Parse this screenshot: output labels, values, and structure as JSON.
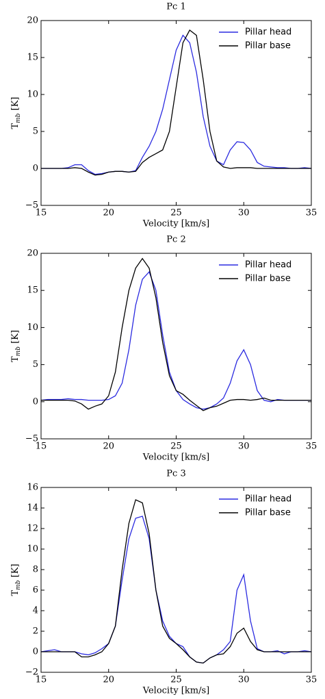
{
  "chart_data": [
    {
      "type": "line",
      "title": "Pc 1",
      "xlabel": "Velocity [km/s]",
      "ylabel": {
        "main": "T",
        "sub": "mb",
        "rest": " [K]"
      },
      "xlim": [
        15,
        35
      ],
      "xticks": [
        15,
        20,
        25,
        30,
        35
      ],
      "ylim": [
        -5,
        20
      ],
      "yticks": [
        {
          "value": -5,
          "label": "−5"
        },
        0,
        5,
        10,
        15,
        20
      ],
      "legend": "upper right",
      "x": [
        15,
        15.5,
        16,
        16.5,
        17,
        17.5,
        18,
        18.5,
        19,
        19.5,
        20,
        20.5,
        21,
        21.5,
        22,
        22.5,
        23,
        23.5,
        24,
        24.5,
        25,
        25.5,
        26,
        26.5,
        27,
        27.5,
        28,
        28.5,
        29,
        29.5,
        30,
        30.5,
        31,
        31.5,
        32,
        32.5,
        33,
        33.5,
        34,
        34.5,
        35
      ],
      "series": [
        {
          "name": "Pillar head",
          "color": "#2a2ae0",
          "values": [
            0,
            0,
            0,
            0,
            0.1,
            0.5,
            0.5,
            -0.3,
            -0.8,
            -0.7,
            -0.5,
            -0.4,
            -0.4,
            -0.5,
            -0.3,
            1.5,
            3,
            5,
            8,
            12,
            16,
            18,
            17,
            13,
            7,
            3,
            1,
            0.5,
            2.5,
            3.6,
            3.5,
            2.5,
            0.8,
            0.3,
            0.2,
            0.1,
            0.1,
            0,
            0,
            0.1,
            0
          ]
        },
        {
          "name": "Pillar base",
          "color": "#000000",
          "values": [
            0,
            0,
            0,
            0,
            0,
            0.1,
            0,
            -0.5,
            -0.9,
            -0.8,
            -0.5,
            -0.4,
            -0.4,
            -0.5,
            -0.4,
            0.8,
            1.5,
            2,
            2.5,
            5,
            11,
            17,
            18.7,
            18,
            12,
            5,
            1,
            0.2,
            0,
            0.1,
            0.1,
            0.1,
            0,
            0,
            0,
            0,
            0,
            0,
            0,
            0,
            0
          ]
        }
      ]
    },
    {
      "type": "line",
      "title": "Pc 2",
      "xlabel": "Velocity [km/s]",
      "ylabel": {
        "main": "T",
        "sub": "mb",
        "rest": " [K]"
      },
      "xlim": [
        15,
        35
      ],
      "xticks": [
        15,
        20,
        25,
        30,
        35
      ],
      "ylim": [
        -5,
        20
      ],
      "yticks": [
        {
          "value": -5,
          "label": "−5"
        },
        0,
        5,
        10,
        15,
        20
      ],
      "legend": "upper right",
      "x": [
        15,
        15.5,
        16,
        16.5,
        17,
        17.5,
        18,
        18.5,
        19,
        19.5,
        20,
        20.5,
        21,
        21.5,
        22,
        22.5,
        23,
        23.5,
        24,
        24.5,
        25,
        25.5,
        26,
        26.5,
        27,
        27.5,
        28,
        28.5,
        29,
        29.5,
        30,
        30.5,
        31,
        31.5,
        32,
        32.5,
        33,
        33.5,
        34,
        34.5,
        35
      ],
      "series": [
        {
          "name": "Pillar head",
          "color": "#2a2ae0",
          "values": [
            0.2,
            0.3,
            0.3,
            0.3,
            0.4,
            0.3,
            0.3,
            0.2,
            0.2,
            0.2,
            0.3,
            0.8,
            2.5,
            7,
            13,
            16.5,
            17.5,
            15,
            9,
            4,
            1.5,
            0.3,
            -0.3,
            -0.8,
            -1,
            -0.8,
            -0.3,
            0.5,
            2.5,
            5.5,
            7,
            5,
            1.5,
            0.2,
            0,
            0.3,
            0.2,
            0.2,
            0.2,
            0.2,
            0.2
          ]
        },
        {
          "name": "Pillar base",
          "color": "#000000",
          "values": [
            0.2,
            0.2,
            0.2,
            0.2,
            0.2,
            0.1,
            -0.3,
            -1,
            -0.6,
            -0.3,
            0.8,
            4,
            10,
            15,
            18,
            19.3,
            18,
            14,
            8,
            3.5,
            1.5,
            1,
            0.2,
            -0.5,
            -1.2,
            -0.8,
            -0.6,
            -0.2,
            0.2,
            0.3,
            0.3,
            0.2,
            0.3,
            0.5,
            0.2,
            0.2,
            0.2,
            0.2,
            0.2,
            0.2,
            0.2
          ]
        }
      ]
    },
    {
      "type": "line",
      "title": "Pc 3",
      "xlabel": "Velocity [km/s]",
      "ylabel": {
        "main": "T",
        "sub": "mb",
        "rest": " [K]"
      },
      "xlim": [
        15,
        35
      ],
      "xticks": [
        15,
        20,
        25,
        30,
        35
      ],
      "ylim": [
        -2,
        16
      ],
      "yticks": [
        {
          "value": -2,
          "label": "−2"
        },
        0,
        2,
        4,
        6,
        8,
        10,
        12,
        14,
        16
      ],
      "legend": "upper right",
      "x": [
        15,
        15.5,
        16,
        16.5,
        17,
        17.5,
        18,
        18.5,
        19,
        19.5,
        20,
        20.5,
        21,
        21.5,
        22,
        22.5,
        23,
        23.5,
        24,
        24.5,
        25,
        25.5,
        26,
        26.5,
        27,
        27.5,
        28,
        28.5,
        29,
        29.5,
        30,
        30.5,
        31,
        31.5,
        32,
        32.5,
        33,
        33.5,
        34,
        34.5,
        35
      ],
      "series": [
        {
          "name": "Pillar head",
          "color": "#2a2ae0",
          "values": [
            0,
            0.1,
            0.2,
            0,
            0,
            0,
            -0.2,
            -0.3,
            -0.1,
            0.3,
            0.8,
            2.5,
            7,
            11,
            13,
            13.2,
            11,
            6,
            3,
            1.5,
            0.8,
            0.5,
            -0.5,
            -1,
            -1.1,
            -0.6,
            -0.3,
            0.2,
            1,
            6,
            7.5,
            3,
            0.3,
            0,
            0,
            0.1,
            -0.2,
            0,
            0,
            0.1,
            0
          ]
        },
        {
          "name": "Pillar base",
          "color": "#000000",
          "values": [
            0,
            0,
            0,
            0,
            0,
            0,
            -0.5,
            -0.5,
            -0.3,
            0,
            0.8,
            2.5,
            8,
            12.5,
            14.8,
            14.5,
            11.5,
            6,
            2.5,
            1.3,
            0.8,
            0.2,
            -0.5,
            -1,
            -1.1,
            -0.6,
            -0.3,
            -0.2,
            0.5,
            1.8,
            2.3,
            1,
            0.2,
            0,
            0,
            0,
            0,
            0,
            0,
            0,
            0
          ]
        }
      ]
    }
  ]
}
